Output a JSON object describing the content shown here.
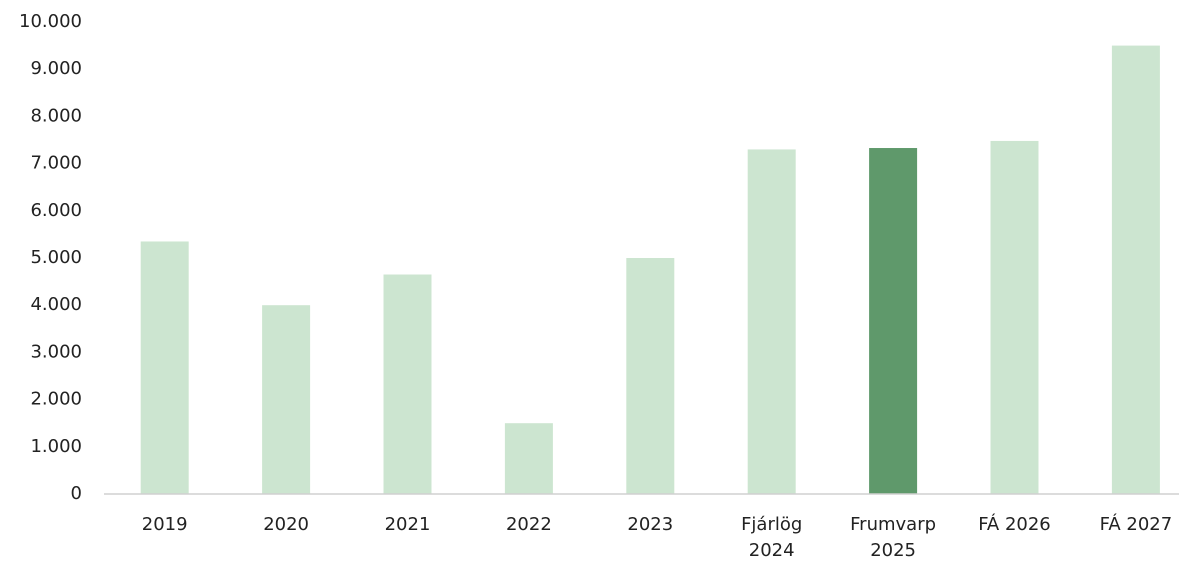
{
  "chart_data": {
    "type": "bar",
    "categories": [
      "2019",
      "2020",
      "2021",
      "2022",
      "2023",
      "Fjárlög\n2024",
      "Frumvarp\n2025",
      "FÁ 2026",
      "FÁ 2027"
    ],
    "values": [
      5350,
      4000,
      4650,
      1500,
      5000,
      7300,
      7330,
      7480,
      9500
    ],
    "colors": [
      "#cce5d0",
      "#cce5d0",
      "#cce5d0",
      "#cce5d0",
      "#cce5d0",
      "#cce5d0",
      "#5f996b",
      "#cce5d0",
      "#cce5d0"
    ],
    "ylim": [
      0,
      10000
    ],
    "yticks": [
      0,
      {
        "value": 1000,
        "label": "1.000"
      },
      {
        "value": 2000,
        "label": "2.000"
      },
      {
        "value": 3000,
        "label": "3.000"
      },
      {
        "value": 4000,
        "label": "4.000"
      },
      {
        "value": 5000,
        "label": "5.000"
      },
      {
        "value": 6000,
        "label": "6.000"
      },
      {
        "value": 7000,
        "label": "7.000"
      },
      {
        "value": 8000,
        "label": "8.000"
      },
      {
        "value": 9000,
        "label": "9.000"
      },
      {
        "value": 10000,
        "label": "10.000"
      }
    ],
    "grid": false
  }
}
